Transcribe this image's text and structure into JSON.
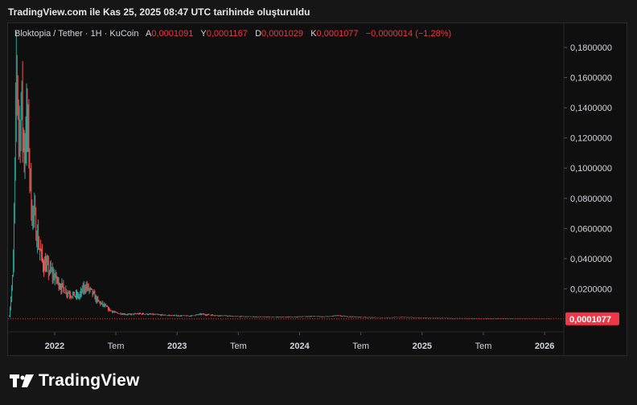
{
  "caption": "TradingView.com ile Kas 25, 2025 08:47 UTC tarihinde oluşturuldu",
  "legend": {
    "symbol": "Bloktopia / Tether · 1H · KuCoin",
    "open_label": "A",
    "open": "0,0001091",
    "high_label": "Y",
    "high": "0,0001167",
    "low_label": "D",
    "low": "0,0001029",
    "close_label": "K",
    "close": "0,0001077",
    "change": "−0,0000014 (−1,28%)"
  },
  "brand": {
    "name": "TradingView"
  },
  "colors": {
    "up": "#26a69a",
    "down": "#ef5350",
    "price_tag": "#f23645",
    "background": "#0f0f0f"
  },
  "chart_data": {
    "type": "candlestick",
    "y_axis": {
      "min": -0.008,
      "max": 0.188,
      "ticks": [
        0.18,
        0.16,
        0.14,
        0.12,
        0.1,
        0.08,
        0.06,
        0.04,
        0.02
      ],
      "tick_labels": [
        "0,1800000",
        "0,1600000",
        "0,1400000",
        "0,1200000",
        "0,1000000",
        "0,0800000",
        "0,0600000",
        "0,0400000",
        "0,0200000"
      ],
      "position": "right"
    },
    "x_axis": {
      "min": 2021.62,
      "max": 2026.15,
      "ticks": [
        2022.0,
        2022.5,
        2023.0,
        2023.5,
        2024.0,
        2024.5,
        2025.0,
        2025.5,
        2026.0
      ],
      "tick_labels": [
        "2022",
        "Tem",
        "2023",
        "Tem",
        "2024",
        "Tem",
        "2025",
        "Tem",
        "2026"
      ]
    },
    "last_price": 0.0001077,
    "last_price_label": "0,0001077",
    "price_path": [
      [
        2021.63,
        0.002
      ],
      [
        2021.66,
        0.03
      ],
      [
        2021.68,
        0.12
      ],
      [
        2021.69,
        0.175
      ],
      [
        2021.71,
        0.12
      ],
      [
        2021.73,
        0.145
      ],
      [
        2021.75,
        0.11
      ],
      [
        2021.77,
        0.13
      ],
      [
        2021.79,
        0.115
      ],
      [
        2021.81,
        0.075
      ],
      [
        2021.84,
        0.065
      ],
      [
        2021.87,
        0.05
      ],
      [
        2021.9,
        0.038
      ],
      [
        2021.95,
        0.033
      ],
      [
        2022.0,
        0.028
      ],
      [
        2022.05,
        0.022
      ],
      [
        2022.1,
        0.018
      ],
      [
        2022.15,
        0.016
      ],
      [
        2022.2,
        0.015
      ],
      [
        2022.25,
        0.022
      ],
      [
        2022.3,
        0.018
      ],
      [
        2022.35,
        0.012
      ],
      [
        2022.4,
        0.009
      ],
      [
        2022.45,
        0.006
      ],
      [
        2022.5,
        0.004
      ],
      [
        2022.6,
        0.003
      ],
      [
        2022.7,
        0.0035
      ],
      [
        2022.8,
        0.003
      ],
      [
        2022.9,
        0.0025
      ],
      [
        2023.0,
        0.0022
      ],
      [
        2023.1,
        0.002
      ],
      [
        2023.2,
        0.0032
      ],
      [
        2023.3,
        0.0025
      ],
      [
        2023.45,
        0.0018
      ],
      [
        2023.6,
        0.0015
      ],
      [
        2023.8,
        0.0013
      ],
      [
        2024.0,
        0.0015
      ],
      [
        2024.1,
        0.0018
      ],
      [
        2024.2,
        0.0014
      ],
      [
        2024.3,
        0.0022
      ],
      [
        2024.4,
        0.0016
      ],
      [
        2024.55,
        0.0011
      ],
      [
        2024.7,
        0.0009
      ],
      [
        2024.85,
        0.0012
      ],
      [
        2025.0,
        0.0007
      ],
      [
        2025.2,
        0.0005
      ],
      [
        2025.4,
        0.0004
      ],
      [
        2025.6,
        0.0003
      ],
      [
        2025.75,
        0.0002
      ],
      [
        2025.9,
        0.00012
      ],
      [
        2026.05,
        0.0001077
      ]
    ]
  }
}
